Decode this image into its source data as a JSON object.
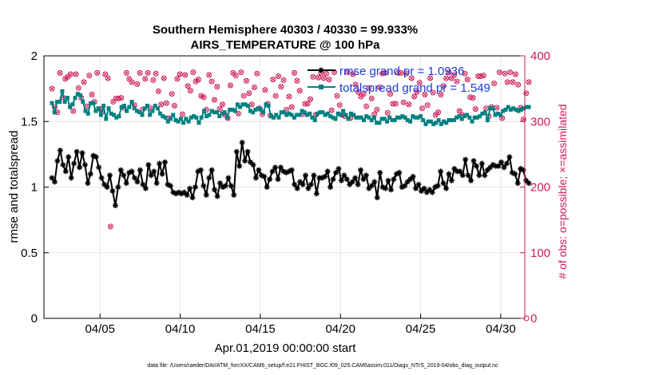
{
  "chart_data": {
    "type": "line",
    "title_line1": "Southern Hemisphere 40303 / 40330 = 99.933%",
    "title_line2": "AIRS_TEMPERATURE @ 100 hPa",
    "xlabel": "Apr.01,2019 00:00:00 start",
    "ylabel": "rmse and totalspread",
    "ylabel_right": "# of obs: o=possible; ×=assimilated",
    "footer": "data file: /Users/raeder/DAI/ATM_forcXX/CAM6_setup/f.e21.FHIST_BGC.f09_025.CAM6assim.011/Diags_NTrS_2019-04/obs_diag_output.nc",
    "ylim": [
      0,
      2
    ],
    "ylim_right": [
      0,
      400
    ],
    "xlim": [
      0.5,
      30.5
    ],
    "x_ticks": [
      4,
      9,
      14,
      19,
      24,
      29
    ],
    "x_tick_labels": [
      "04/05",
      "04/10",
      "04/15",
      "04/20",
      "04/25",
      "04/30"
    ],
    "y_tick_labels": [
      "0",
      "0.5",
      "1",
      "1.5",
      "2"
    ],
    "y_right_tick_labels": [
      "0",
      "100",
      "200",
      "300",
      "400"
    ],
    "series": [
      {
        "name": "rmse",
        "legend": "rmse grand pr = 1.0936",
        "color": "#000000",
        "marker": "star",
        "values": [
          1.07,
          1.04,
          1.2,
          1.28,
          1.17,
          1.12,
          1.23,
          1.07,
          1.18,
          1.27,
          1.15,
          1.26,
          1.17,
          1.03,
          1.1,
          1.24,
          1.23,
          1.15,
          1.07,
          1.02,
          1.0,
          1.09,
          0.97,
          0.86,
          1.0,
          1.13,
          1.09,
          1.03,
          1.11,
          1.12,
          1.07,
          1.04,
          1.13,
          1.02,
          0.99,
          1.17,
          1.09,
          1.12,
          1.03,
          1.18,
          1.1,
          1.19,
          1.02,
          1.01,
          0.96,
          0.95,
          0.96,
          0.95,
          0.96,
          0.94,
          0.99,
          0.92,
          1.0,
          1.12,
          1.13,
          1.01,
          0.94,
          1.07,
          1.13,
          0.98,
          0.93,
          1.03,
          1.0,
          1.01,
          1.07,
          1.01,
          0.94,
          1.27,
          1.16,
          1.34,
          1.2,
          1.27,
          1.19,
          1.17,
          1.07,
          1.13,
          1.09,
          1.08,
          1.0,
          1.06,
          1.12,
          1.15,
          1.06,
          1.15,
          1.12,
          1.11,
          1.12,
          1.13,
          1.02,
          0.99,
          1.04,
          1.02,
          1.09,
          0.99,
          1.02,
          1.09,
          0.95,
          1.07,
          1.07,
          1.08,
          1.12,
          1.0,
          1.06,
          1.11,
          1.14,
          1.05,
          1.09,
          1.06,
          1.02,
          1.04,
          1.07,
          1.02,
          1.13,
          1.06,
          1.09,
          0.99,
          1.01,
          1.04,
          0.92,
          1.11,
          1.0,
          0.99,
          1.05,
          0.98,
          1.06,
          1.1,
          1.11,
          1.0,
          1.01,
          1.04,
          1.06,
          1.08,
          0.99,
          1.02,
          0.97,
          0.99,
          0.96,
          0.98,
          0.96,
          1.0,
          1.01,
          1.12,
          1.03,
          0.99,
          1.1,
          1.05,
          1.14,
          1.12,
          1.12,
          1.09,
          1.21,
          1.09,
          1.05,
          1.2,
          1.16,
          1.09,
          1.18,
          1.09,
          1.13,
          1.15,
          1.17,
          1.16,
          1.16,
          1.19,
          1.15,
          1.18,
          1.23,
          1.11,
          1.1,
          1.03,
          1.14,
          1.13,
          1.05,
          1.03
        ]
      },
      {
        "name": "totalspread",
        "legend": "totalspread grand pr = 1.549",
        "color": "#008080",
        "marker": "square",
        "values": [
          1.64,
          1.57,
          1.65,
          1.65,
          1.73,
          1.65,
          1.68,
          1.61,
          1.63,
          1.68,
          1.71,
          1.7,
          1.65,
          1.58,
          1.56,
          1.64,
          1.64,
          1.58,
          1.6,
          1.55,
          1.62,
          1.52,
          1.6,
          1.56,
          1.55,
          1.53,
          1.54,
          1.61,
          1.62,
          1.58,
          1.61,
          1.65,
          1.6,
          1.58,
          1.57,
          1.55,
          1.6,
          1.62,
          1.55,
          1.58,
          1.62,
          1.6,
          1.56,
          1.54,
          1.53,
          1.5,
          1.52,
          1.55,
          1.51,
          1.5,
          1.52,
          1.49,
          1.52,
          1.5,
          1.53,
          1.54,
          1.53,
          1.49,
          1.53,
          1.58,
          1.54,
          1.55,
          1.58,
          1.57,
          1.57,
          1.54,
          1.56,
          1.57,
          1.53,
          1.59,
          1.59,
          1.58,
          1.63,
          1.61,
          1.63,
          1.63,
          1.62,
          1.58,
          1.57,
          1.59,
          1.6,
          1.59,
          1.57,
          1.63,
          1.62,
          1.54,
          1.53,
          1.55,
          1.53,
          1.57,
          1.57,
          1.55,
          1.56,
          1.55,
          1.53,
          1.55,
          1.55,
          1.58,
          1.57,
          1.55,
          1.56,
          1.53,
          1.51,
          1.56,
          1.57,
          1.57,
          1.55,
          1.56,
          1.54,
          1.53,
          1.52,
          1.56,
          1.55,
          1.58,
          1.55,
          1.52,
          1.56,
          1.55,
          1.53,
          1.53,
          1.53,
          1.51,
          1.54,
          1.53,
          1.51,
          1.53,
          1.49,
          1.49,
          1.52,
          1.52,
          1.5,
          1.53,
          1.51,
          1.51,
          1.53,
          1.53,
          1.54,
          1.53,
          1.51,
          1.5,
          1.54,
          1.53,
          1.53,
          1.54,
          1.51,
          1.48,
          1.5,
          1.5,
          1.48,
          1.49,
          1.51,
          1.48,
          1.5,
          1.49,
          1.51,
          1.51,
          1.51,
          1.53,
          1.54,
          1.52,
          1.54,
          1.55,
          1.53,
          1.5,
          1.53,
          1.53,
          1.54,
          1.56,
          1.57,
          1.51,
          1.6,
          1.6,
          1.55,
          1.56,
          1.55,
          1.58,
          1.59,
          1.61,
          1.59,
          1.6,
          1.59,
          1.58,
          1.59,
          1.6,
          1.61,
          1.61
        ]
      },
      {
        "name": "obs_possible",
        "axis": "right",
        "color": "#cc1a5a",
        "marker": "circle",
        "values": [
          350,
          322,
          314,
          374,
          337,
          365,
          368,
          372,
          316,
          372,
          351,
          336,
          360,
          323,
          370,
          341,
          330,
          374,
          319,
          315,
          372,
          366,
          140,
          330,
          335,
          335,
          336,
          321,
          374,
          365,
          360,
          325,
          357,
          374,
          318,
          365,
          374,
          320,
          363,
          373,
          346,
          326,
          366,
          328,
          305,
          342,
          324,
          365,
          372,
          311,
          371,
          354,
          347,
          375,
          361,
          364,
          339,
          337,
          318,
          371,
          361,
          333,
          353,
          319,
          326,
          310,
          305,
          355,
          374,
          370,
          312,
          375,
          339,
          362,
          343,
          326,
          352,
          373,
          320,
          311,
          348,
          327,
          309,
          364,
          339,
          369,
          353,
          363,
          318,
          338,
          322,
          374,
          362,
          347,
          311,
          327,
          327,
          334,
          368,
          310,
          367,
          374,
          366,
          373,
          364,
          317,
          375,
          339,
          325,
          310,
          308,
          375,
          305,
          372,
          356,
          345,
          338,
          342,
          323,
          351,
          335,
          311,
          318,
          352,
          373,
          374,
          313,
          342,
          327,
          327,
          374,
          374,
          329,
          373,
          326,
          366,
          338,
          345,
          359,
          320,
          341,
          325,
          366,
          344,
          310,
          314,
          341,
          354,
          366,
          375,
          366,
          371,
          361,
          316,
          310,
          373,
          364,
          337,
          336,
          319,
          369,
          369,
          370,
          320,
          308,
          322,
          358,
          321,
          375,
          305,
          373,
          360,
          375,
          360,
          372,
          356,
          321,
          303,
          343,
          360
        ]
      },
      {
        "name": "obs_assimilated",
        "axis": "right",
        "color": "#cc1a5a",
        "marker": "x",
        "values": [
          350,
          322,
          314,
          374,
          337,
          365,
          368,
          372,
          316,
          372,
          351,
          336,
          360,
          323,
          370,
          341,
          330,
          374,
          319,
          315,
          372,
          366,
          140,
          330,
          335,
          335,
          336,
          321,
          374,
          365,
          360,
          325,
          357,
          374,
          318,
          365,
          374,
          320,
          363,
          373,
          346,
          326,
          366,
          328,
          305,
          342,
          324,
          365,
          372,
          311,
          371,
          354,
          347,
          375,
          361,
          364,
          339,
          337,
          318,
          371,
          361,
          333,
          353,
          319,
          326,
          310,
          305,
          355,
          374,
          370,
          312,
          375,
          339,
          362,
          343,
          326,
          352,
          373,
          320,
          311,
          348,
          327,
          309,
          364,
          339,
          369,
          353,
          363,
          318,
          338,
          322,
          374,
          362,
          347,
          311,
          327,
          327,
          334,
          368,
          310,
          367,
          374,
          366,
          373,
          364,
          317,
          375,
          339,
          325,
          310,
          308,
          375,
          305,
          372,
          356,
          345,
          338,
          342,
          323,
          351,
          335,
          311,
          318,
          352,
          373,
          374,
          313,
          342,
          327,
          327,
          374,
          374,
          329,
          373,
          326,
          366,
          338,
          345,
          359,
          320,
          341,
          325,
          366,
          344,
          310,
          314,
          341,
          354,
          366,
          375,
          366,
          371,
          361,
          316,
          310,
          373,
          364,
          337,
          336,
          319,
          369,
          369,
          370,
          320,
          308,
          322,
          358,
          321,
          375,
          305,
          373,
          360,
          375,
          360,
          372,
          356,
          321,
          303,
          343,
          360
        ]
      }
    ],
    "extra_points_right": [
      {
        "x": 30.6,
        "y": 0
      }
    ]
  }
}
